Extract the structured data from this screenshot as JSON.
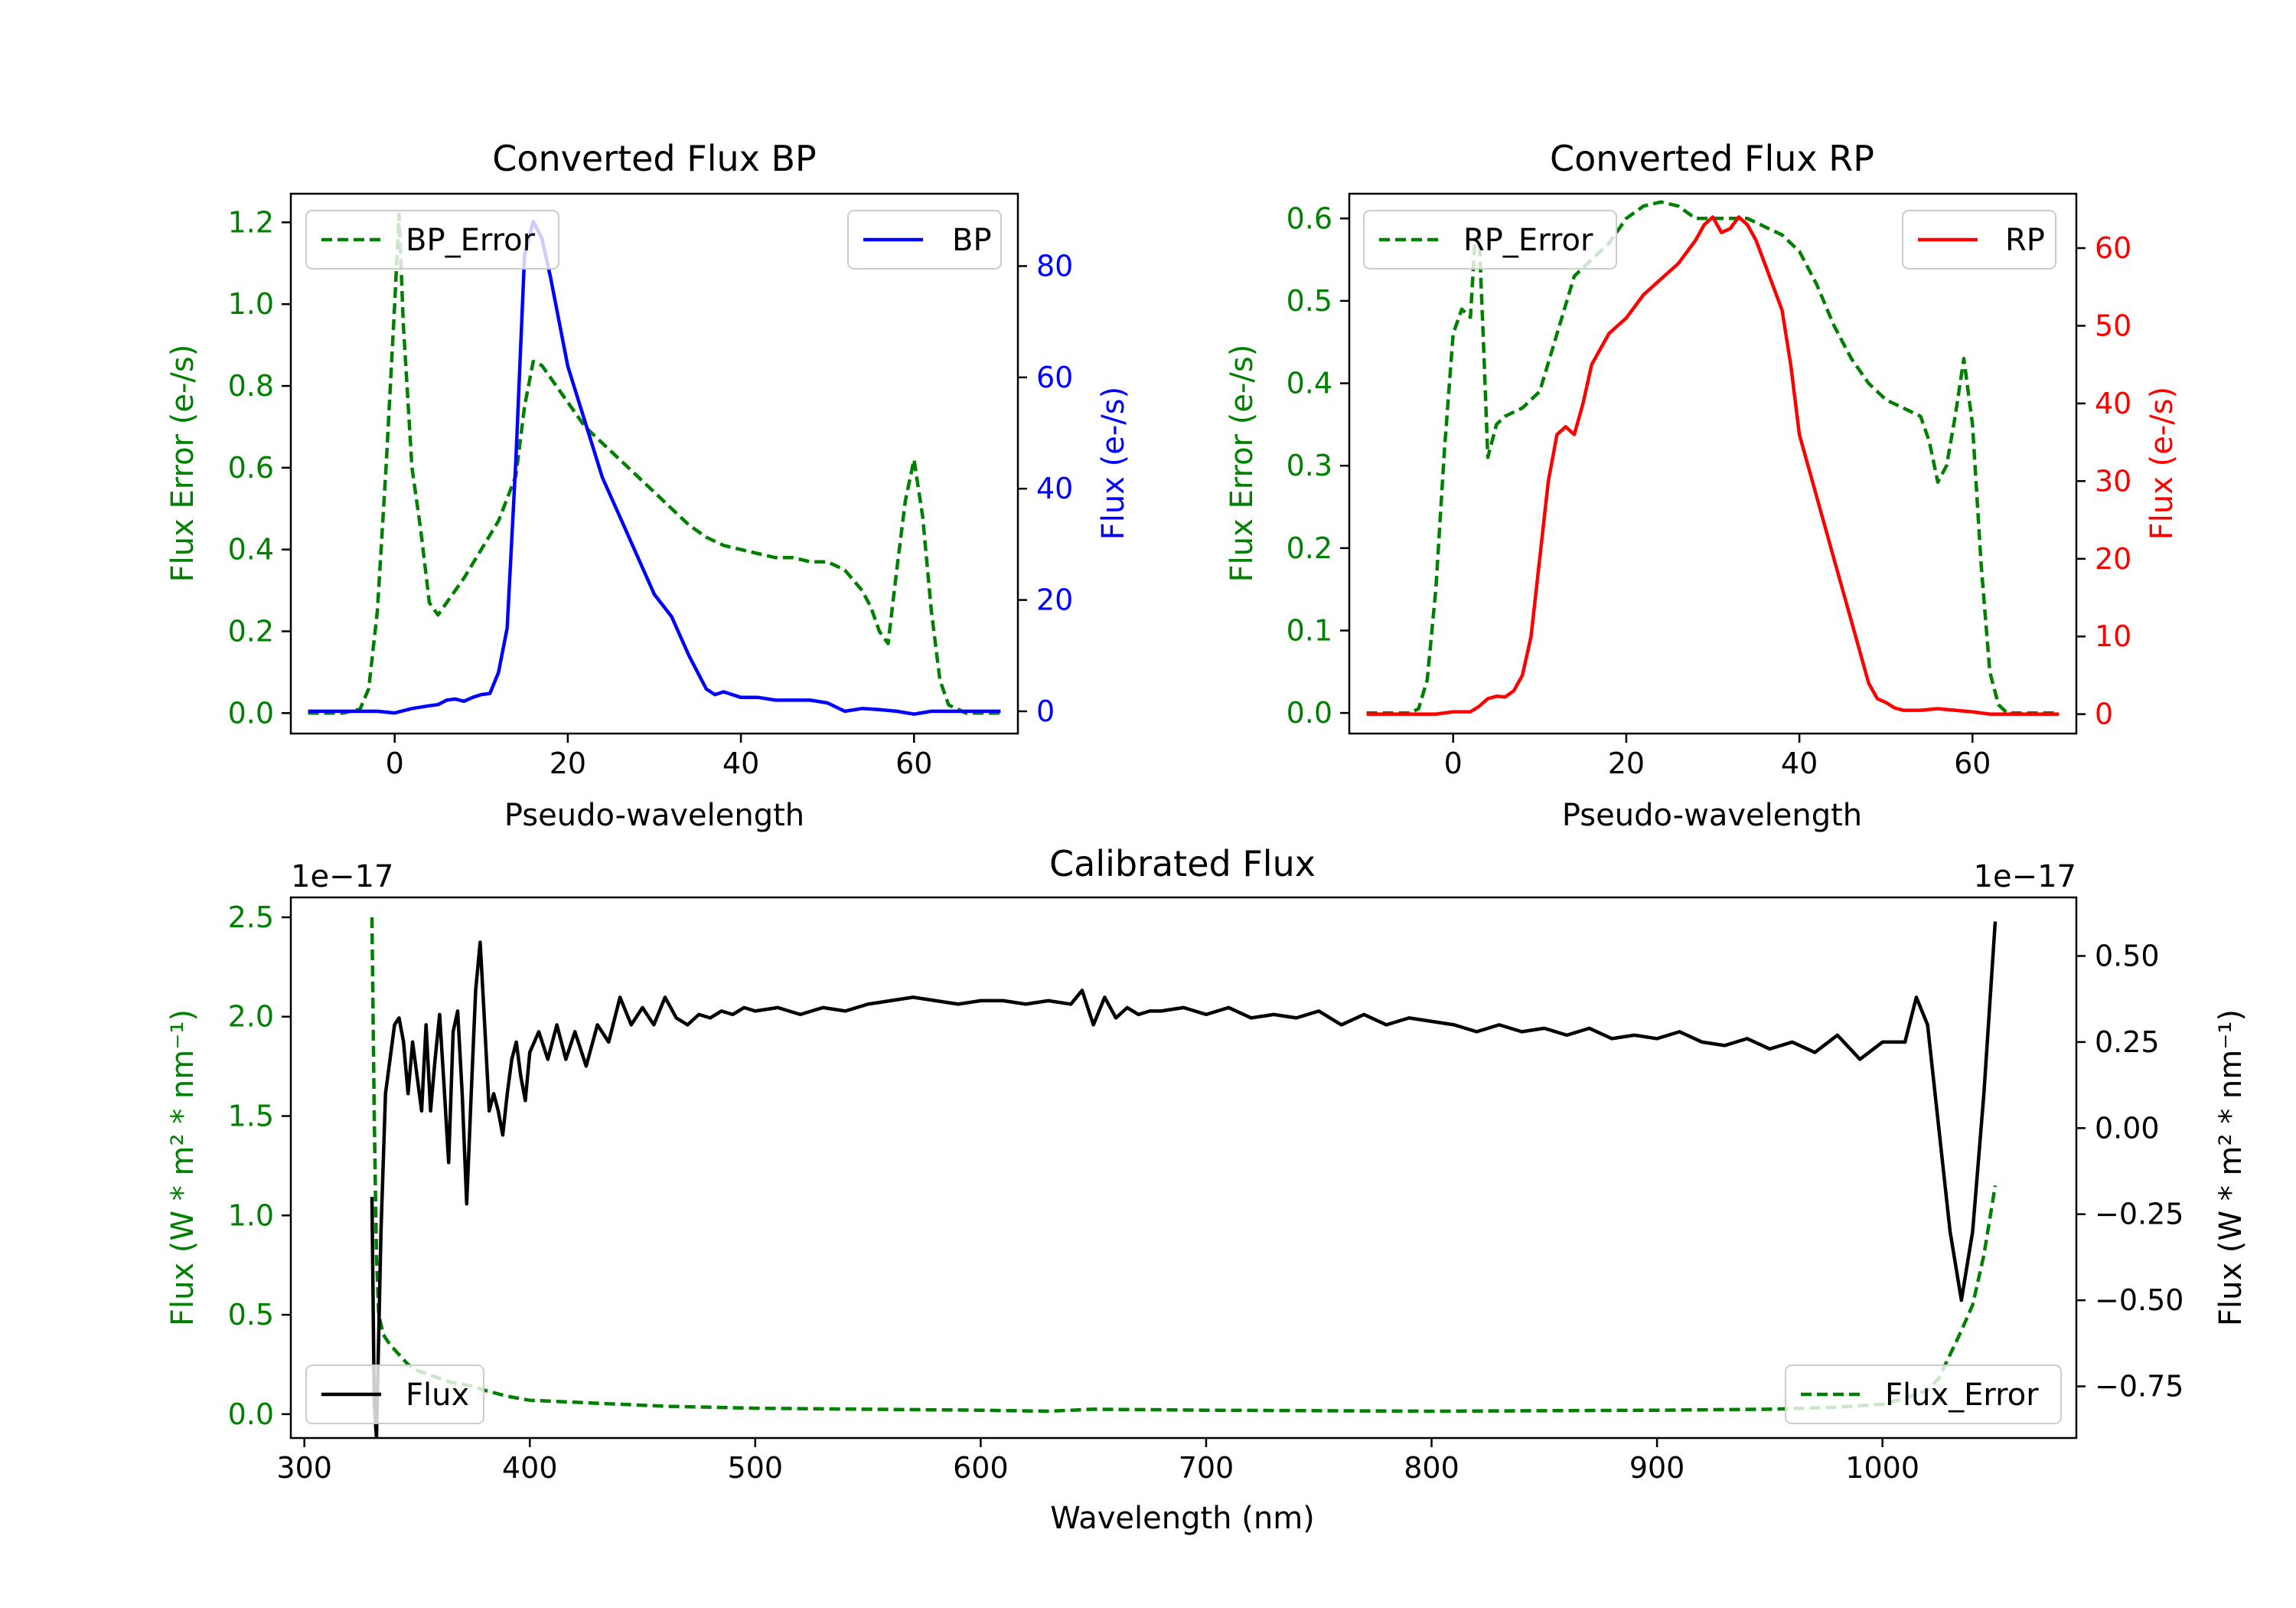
{
  "chart_data": [
    {
      "id": "bp",
      "type": "line",
      "title": "Converted Flux BP",
      "xlabel": "Pseudo-wavelength",
      "xlim": [
        -12,
        72
      ],
      "xticks": [
        0,
        20,
        40,
        60
      ],
      "left_axis": {
        "label": "Flux Error (e-/s)",
        "color": "#008000",
        "ylim": [
          -0.05,
          1.27
        ],
        "ticks": [
          0.0,
          0.2,
          0.4,
          0.6,
          0.8,
          1.0,
          1.2
        ],
        "tick_labels": [
          "0.0",
          "0.2",
          "0.4",
          "0.6",
          "0.8",
          "1.0",
          "1.2"
        ]
      },
      "right_axis": {
        "label": "Flux (e-/s)",
        "color": "#0000ff",
        "ylim": [
          -4,
          93
        ],
        "ticks": [
          0,
          20,
          40,
          60,
          80
        ],
        "tick_labels": [
          "0",
          "20",
          "40",
          "60",
          "80"
        ]
      },
      "series": [
        {
          "name": "BP_Error",
          "axis": "left",
          "color": "#008000",
          "dash": true,
          "legend": "top-left",
          "x": [
            -10,
            -6,
            -4,
            -3,
            -2,
            -1,
            0,
            0.5,
            1,
            2,
            3,
            4,
            5,
            6,
            7,
            8,
            10,
            12,
            14,
            15,
            16,
            17,
            18,
            20,
            22,
            24,
            26,
            28,
            30,
            32,
            34,
            36,
            38,
            40,
            42,
            44,
            46,
            48,
            50,
            52,
            54,
            55,
            56,
            57,
            58,
            59,
            60,
            61,
            62,
            63,
            64,
            66,
            68,
            70
          ],
          "y": [
            0.0,
            0.0,
            0.01,
            0.06,
            0.25,
            0.6,
            1.0,
            1.22,
            0.95,
            0.6,
            0.45,
            0.27,
            0.24,
            0.27,
            0.3,
            0.33,
            0.4,
            0.47,
            0.58,
            0.75,
            0.86,
            0.85,
            0.82,
            0.76,
            0.7,
            0.66,
            0.62,
            0.58,
            0.54,
            0.5,
            0.46,
            0.43,
            0.41,
            0.4,
            0.39,
            0.38,
            0.38,
            0.37,
            0.37,
            0.35,
            0.3,
            0.26,
            0.2,
            0.17,
            0.35,
            0.52,
            0.62,
            0.48,
            0.25,
            0.08,
            0.02,
            0.0,
            0.0,
            0.0
          ]
        },
        {
          "name": "BP",
          "axis": "right",
          "color": "#0000ff",
          "dash": false,
          "legend": "top-right",
          "x": [
            -10,
            -6,
            -4,
            -2,
            0,
            2,
            4,
            5,
            6,
            7,
            8,
            9,
            10,
            11,
            12,
            13,
            14,
            15,
            16,
            17,
            18,
            19,
            20,
            22,
            24,
            26,
            28,
            30,
            32,
            34,
            36,
            37,
            38,
            40,
            42,
            44,
            46,
            48,
            50,
            52,
            54,
            56,
            58,
            60,
            62,
            64,
            66,
            68,
            70
          ],
          "y": [
            0,
            0,
            0,
            0,
            -0.3,
            0.5,
            1.0,
            1.2,
            2.0,
            2.2,
            1.8,
            2.5,
            3.0,
            3.2,
            7.0,
            15.0,
            45.0,
            82.0,
            88.0,
            85.0,
            78.0,
            70.0,
            62.0,
            52.0,
            42.0,
            35.0,
            28.0,
            21.0,
            17.0,
            10.0,
            4.0,
            3.0,
            3.5,
            2.5,
            2.5,
            2.0,
            2.0,
            2.0,
            1.5,
            0.0,
            0.5,
            0.3,
            0.0,
            -0.5,
            0.0,
            0.0,
            0.0,
            0.0,
            0.0
          ]
        }
      ]
    },
    {
      "id": "rp",
      "type": "line",
      "title": "Converted Flux RP",
      "xlabel": "Pseudo-wavelength",
      "xlim": [
        -12,
        72
      ],
      "xticks": [
        0,
        20,
        40,
        60
      ],
      "left_axis": {
        "label": "Flux Error (e-/s)",
        "color": "#008000",
        "ylim": [
          -0.025,
          0.63
        ],
        "ticks": [
          0.0,
          0.1,
          0.2,
          0.3,
          0.4,
          0.5,
          0.6
        ],
        "tick_labels": [
          "0.0",
          "0.1",
          "0.2",
          "0.3",
          "0.4",
          "0.5",
          "0.6"
        ]
      },
      "right_axis": {
        "label": "Flux (e-/s)",
        "color": "#ff0000",
        "ylim": [
          -2.5,
          67
        ],
        "ticks": [
          0,
          10,
          20,
          30,
          40,
          50,
          60
        ],
        "tick_labels": [
          "0",
          "10",
          "20",
          "30",
          "40",
          "50",
          "60"
        ]
      },
      "series": [
        {
          "name": "RP_Error",
          "axis": "left",
          "color": "#008000",
          "dash": true,
          "legend": "top-left",
          "x": [
            -10,
            -5,
            -4,
            -3,
            -2,
            -1,
            0,
            1,
            2,
            2.5,
            3,
            3.5,
            4,
            5,
            6,
            8,
            10,
            12,
            14,
            16,
            18,
            20,
            22,
            24,
            26,
            28,
            30,
            32,
            34,
            36,
            38,
            40,
            42,
            44,
            46,
            48,
            50,
            52,
            54,
            55,
            56,
            57,
            58,
            59,
            60,
            61,
            62,
            63,
            64,
            65,
            66,
            68,
            70
          ],
          "y": [
            0.0,
            0.0,
            0.005,
            0.04,
            0.15,
            0.32,
            0.46,
            0.49,
            0.48,
            0.57,
            0.58,
            0.45,
            0.31,
            0.35,
            0.36,
            0.37,
            0.39,
            0.46,
            0.53,
            0.55,
            0.57,
            0.6,
            0.615,
            0.62,
            0.615,
            0.6,
            0.6,
            0.6,
            0.6,
            0.59,
            0.58,
            0.56,
            0.52,
            0.47,
            0.43,
            0.4,
            0.38,
            0.37,
            0.36,
            0.33,
            0.28,
            0.3,
            0.36,
            0.43,
            0.35,
            0.18,
            0.05,
            0.01,
            0.0,
            0.0,
            0.0,
            0.0,
            0.0
          ]
        },
        {
          "name": "RP",
          "axis": "right",
          "color": "#ff0000",
          "dash": false,
          "legend": "top-right",
          "x": [
            -10,
            -5,
            -2,
            0,
            2,
            3,
            4,
            5,
            6,
            7,
            8,
            9,
            10,
            11,
            12,
            13,
            14,
            15,
            16,
            17,
            18,
            19,
            20,
            22,
            24,
            26,
            28,
            29,
            30,
            31,
            32,
            33,
            34,
            35,
            36,
            37,
            38,
            39,
            40,
            42,
            44,
            46,
            48,
            49,
            50,
            51,
            52,
            54,
            56,
            58,
            60,
            62,
            64,
            66,
            68,
            70
          ],
          "y": [
            0,
            0,
            0,
            0.3,
            0.3,
            1.0,
            2.0,
            2.3,
            2.2,
            3.0,
            5.0,
            10.0,
            20.0,
            30.0,
            36.0,
            37.0,
            36.0,
            40.0,
            45.0,
            47.0,
            49.0,
            50.0,
            51.0,
            54.0,
            56.0,
            58.0,
            61.0,
            63.0,
            64.0,
            62.0,
            62.5,
            64.0,
            63.0,
            61.0,
            58.0,
            55.0,
            52.0,
            45.0,
            36.0,
            28.0,
            20.0,
            12.0,
            4.0,
            2.0,
            1.5,
            0.8,
            0.5,
            0.5,
            0.7,
            0.5,
            0.3,
            0.0,
            0.0,
            0.0,
            0.0,
            0.0
          ]
        }
      ]
    },
    {
      "id": "cal",
      "type": "line",
      "title": "Calibrated Flux",
      "xlabel": "Wavelength (nm)",
      "xlim": [
        294,
        1086
      ],
      "xticks": [
        300,
        400,
        500,
        600,
        700,
        800,
        900,
        1000
      ],
      "left_axis": {
        "label": "Flux (W * m² * nm⁻¹)",
        "color": "#008000",
        "offset_text": "1e−17",
        "ylim": [
          -0.12,
          2.6
        ],
        "ticks": [
          0.0,
          0.5,
          1.0,
          1.5,
          2.0,
          2.5
        ],
        "tick_labels": [
          "0.0",
          "0.5",
          "1.0",
          "1.5",
          "2.0",
          "2.5"
        ]
      },
      "right_axis": {
        "label": "Flux (W * m² * nm⁻¹)",
        "color": "#000000",
        "offset_text": "1e−17",
        "ylim": [
          -0.9,
          0.67
        ],
        "ticks": [
          -0.75,
          -0.5,
          -0.25,
          0.0,
          0.25,
          0.5
        ],
        "tick_labels": [
          "−0.75",
          "−0.50",
          "−0.25",
          "0.00",
          "0.25",
          "0.50"
        ]
      },
      "series": [
        {
          "name": "Flux",
          "axis": "right",
          "color": "#000000",
          "dash": false,
          "legend": "bottom-left",
          "x": [
            330,
            331,
            332,
            334,
            336,
            338,
            340,
            342,
            344,
            346,
            348,
            350,
            352,
            354,
            356,
            358,
            360,
            362,
            364,
            366,
            368,
            370,
            372,
            374,
            376,
            378,
            380,
            382,
            384,
            386,
            388,
            390,
            392,
            394,
            396,
            398,
            400,
            404,
            408,
            412,
            416,
            420,
            425,
            430,
            435,
            440,
            445,
            450,
            455,
            460,
            465,
            470,
            475,
            480,
            485,
            490,
            495,
            500,
            510,
            520,
            530,
            540,
            550,
            560,
            570,
            580,
            590,
            600,
            610,
            620,
            630,
            640,
            645,
            650,
            655,
            660,
            665,
            670,
            675,
            680,
            690,
            700,
            710,
            720,
            730,
            740,
            750,
            760,
            770,
            780,
            790,
            800,
            810,
            820,
            830,
            840,
            850,
            860,
            870,
            880,
            890,
            900,
            910,
            920,
            930,
            940,
            950,
            960,
            970,
            980,
            990,
            1000,
            1010,
            1015,
            1020,
            1025,
            1030,
            1035,
            1040,
            1045,
            1050
          ],
          "y": [
            -0.2,
            -0.8,
            -0.9,
            -0.3,
            0.1,
            0.2,
            0.3,
            0.32,
            0.25,
            0.1,
            0.25,
            0.15,
            0.05,
            0.3,
            0.05,
            0.2,
            0.33,
            0.12,
            -0.1,
            0.28,
            0.34,
            0.1,
            -0.22,
            0.1,
            0.4,
            0.54,
            0.3,
            0.05,
            0.1,
            0.05,
            -0.02,
            0.1,
            0.2,
            0.25,
            0.15,
            0.08,
            0.22,
            0.28,
            0.2,
            0.3,
            0.2,
            0.28,
            0.18,
            0.3,
            0.25,
            0.38,
            0.3,
            0.35,
            0.3,
            0.38,
            0.32,
            0.3,
            0.33,
            0.32,
            0.34,
            0.33,
            0.35,
            0.34,
            0.35,
            0.33,
            0.35,
            0.34,
            0.36,
            0.37,
            0.38,
            0.37,
            0.36,
            0.37,
            0.37,
            0.36,
            0.37,
            0.36,
            0.4,
            0.3,
            0.38,
            0.32,
            0.35,
            0.33,
            0.34,
            0.34,
            0.35,
            0.33,
            0.35,
            0.32,
            0.33,
            0.32,
            0.34,
            0.3,
            0.33,
            0.3,
            0.32,
            0.31,
            0.3,
            0.28,
            0.3,
            0.28,
            0.29,
            0.27,
            0.29,
            0.26,
            0.27,
            0.26,
            0.28,
            0.25,
            0.24,
            0.26,
            0.23,
            0.25,
            0.22,
            0.27,
            0.2,
            0.25,
            0.25,
            0.38,
            0.3,
            0.0,
            -0.3,
            -0.5,
            -0.3,
            0.1,
            0.6
          ]
        },
        {
          "name": "Flux_Error",
          "axis": "left",
          "color": "#008000",
          "dash": true,
          "legend": "bottom-right",
          "x": [
            330,
            331,
            332,
            333,
            335,
            338,
            342,
            346,
            350,
            355,
            360,
            365,
            370,
            375,
            380,
            390,
            400,
            420,
            440,
            460,
            480,
            500,
            550,
            600,
            630,
            640,
            650,
            700,
            800,
            900,
            950,
            980,
            1000,
            1010,
            1020,
            1025,
            1030,
            1035,
            1040,
            1045,
            1050
          ],
          "y": [
            2.5,
            1.5,
            0.8,
            0.5,
            0.4,
            0.35,
            0.3,
            0.25,
            0.22,
            0.2,
            0.18,
            0.16,
            0.15,
            0.14,
            0.12,
            0.09,
            0.07,
            0.06,
            0.05,
            0.04,
            0.035,
            0.03,
            0.025,
            0.02,
            0.015,
            0.02,
            0.025,
            0.02,
            0.015,
            0.02,
            0.025,
            0.035,
            0.05,
            0.08,
            0.12,
            0.18,
            0.3,
            0.42,
            0.55,
            0.8,
            1.15
          ]
        }
      ]
    }
  ]
}
